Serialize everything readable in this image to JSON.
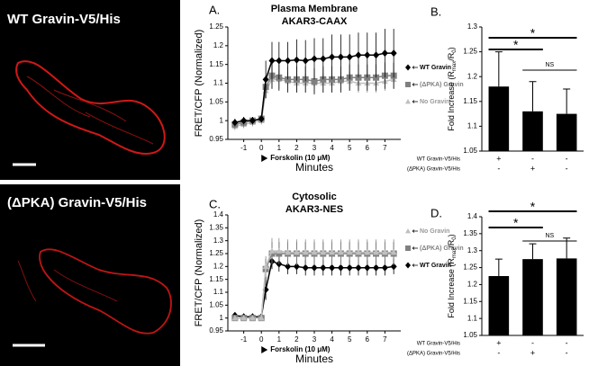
{
  "images": [
    {
      "label": "WT Gravin-V5/His"
    },
    {
      "label": "(ΔPKA) Gravin-V5/His"
    }
  ],
  "chart_data": [
    {
      "type": "line",
      "panel_label": "A.",
      "title": [
        "Plasma Membrane",
        "AKAR3-CAAX"
      ],
      "y_label": "FRET/CFP (Normalized)",
      "x_label": "Minutes",
      "x": [
        -1.5,
        -1,
        -0.5,
        0,
        0.25,
        0.6,
        1,
        1.5,
        2,
        2.5,
        3,
        3.5,
        4,
        4.5,
        5,
        5.5,
        6,
        6.5,
        7,
        7.5
      ],
      "xlim": [
        -1.9,
        7.9
      ],
      "xticks": [
        -1,
        0,
        1,
        2,
        3,
        4,
        5,
        6,
        7
      ],
      "ylim": [
        0.95,
        1.25
      ],
      "yticks": [
        0.95,
        1,
        1.05,
        1.1,
        1.15,
        1.2,
        1.25
      ],
      "annotation": {
        "text": "Forskolin (10 μM)",
        "x": 0
      },
      "series": [
        {
          "name": "WT Gravin",
          "color": "#000000",
          "marker": "diamond",
          "values": [
            0.995,
            1.0,
            1.0,
            1.005,
            1.11,
            1.16,
            1.16,
            1.16,
            1.162,
            1.16,
            1.165,
            1.165,
            1.17,
            1.17,
            1.17,
            1.175,
            1.175,
            1.175,
            1.18,
            1.18
          ],
          "errors": [
            0.01,
            0.01,
            0.01,
            0.01,
            0.05,
            0.05,
            0.05,
            0.05,
            0.055,
            0.055,
            0.055,
            0.055,
            0.06,
            0.06,
            0.06,
            0.06,
            0.06,
            0.06,
            0.065,
            0.065
          ]
        },
        {
          "name": "(ΔPKA) Gravin",
          "color": "#808080",
          "marker": "square",
          "values": [
            0.99,
            0.995,
            1.0,
            1.005,
            1.09,
            1.12,
            1.115,
            1.11,
            1.11,
            1.11,
            1.105,
            1.11,
            1.11,
            1.11,
            1.115,
            1.115,
            1.115,
            1.115,
            1.12,
            1.12
          ],
          "errors": [
            0.01,
            0.01,
            0.01,
            0.01,
            0.03,
            0.035,
            0.035,
            0.035,
            0.035,
            0.035,
            0.035,
            0.035,
            0.035,
            0.035,
            0.035,
            0.035,
            0.035,
            0.035,
            0.035,
            0.035
          ]
        },
        {
          "name": "No Gravin",
          "color": "#bfbfbf",
          "marker": "triangle",
          "values": [
            0.985,
            0.99,
            0.995,
            1.0,
            1.08,
            1.11,
            1.11,
            1.105,
            1.1,
            1.1,
            1.1,
            1.1,
            1.1,
            1.105,
            1.105,
            1.1,
            1.1,
            1.1,
            1.105,
            1.11
          ],
          "errors": [
            0.01,
            0.01,
            0.01,
            0.01,
            0.02,
            0.025,
            0.025,
            0.025,
            0.025,
            0.025,
            0.025,
            0.025,
            0.025,
            0.025,
            0.025,
            0.025,
            0.025,
            0.025,
            0.025,
            0.025
          ]
        }
      ]
    },
    {
      "type": "bar",
      "panel_label": "B.",
      "y_label": [
        "Fold Increase (R",
        "max",
        "/R",
        "0",
        ")"
      ],
      "color": "#000000",
      "values": [
        1.18,
        1.13,
        1.125
      ],
      "errors": [
        0.07,
        0.06,
        0.05
      ],
      "ylim": [
        1.05,
        1.3
      ],
      "yticks": [
        1.05,
        1.1,
        1.15,
        1.2,
        1.25,
        1.3
      ],
      "conditions": [
        {
          "name": "WT Gravin-V5/His",
          "marks": [
            "+",
            "-",
            "-"
          ]
        },
        {
          "name": "(ΔPKA) Gravin-V5/His",
          "marks": [
            "-",
            "+",
            "-"
          ]
        }
      ],
      "significance": [
        {
          "from": 0,
          "to": 2,
          "label": "*"
        },
        {
          "from": 0,
          "to": 1,
          "label": "*"
        },
        {
          "from": 1,
          "to": 2,
          "label": "NS"
        }
      ]
    },
    {
      "type": "line",
      "panel_label": "C.",
      "title": [
        "Cytosolic",
        "AKAR3-NES"
      ],
      "y_label": "FRET/CFP (Normalized)",
      "x_label": "Minutes",
      "x": [
        -1.5,
        -1,
        -0.5,
        0,
        0.25,
        0.6,
        1,
        1.5,
        2,
        2.5,
        3,
        3.5,
        4,
        4.5,
        5,
        5.5,
        6,
        6.5,
        7,
        7.5
      ],
      "xlim": [
        -1.9,
        7.9
      ],
      "xticks": [
        -1,
        0,
        1,
        2,
        3,
        4,
        5,
        6,
        7
      ],
      "ylim": [
        0.95,
        1.4
      ],
      "yticks": [
        0.95,
        1,
        1.05,
        1.1,
        1.15,
        1.2,
        1.25,
        1.3,
        1.35,
        1.4
      ],
      "annotation": {
        "text": "Forskolin (10 μM)",
        "x": 0
      },
      "series": [
        {
          "name": "No Gravin",
          "color": "#bfbfbf",
          "marker": "triangle",
          "values": [
            1.0,
            1.0,
            1.0,
            1.0,
            1.2,
            1.26,
            1.26,
            1.255,
            1.255,
            1.255,
            1.255,
            1.255,
            1.255,
            1.255,
            1.255,
            1.255,
            1.255,
            1.255,
            1.255,
            1.255
          ],
          "errors": [
            0.005,
            0.005,
            0.005,
            0.005,
            0.04,
            0.05,
            0.05,
            0.05,
            0.05,
            0.05,
            0.05,
            0.05,
            0.05,
            0.05,
            0.05,
            0.05,
            0.05,
            0.05,
            0.05,
            0.05
          ]
        },
        {
          "name": "(ΔPKA) Gravin",
          "color": "#808080",
          "marker": "square",
          "values": [
            1.0,
            1.0,
            1.0,
            1.0,
            1.19,
            1.25,
            1.25,
            1.25,
            1.25,
            1.25,
            1.25,
            1.25,
            1.25,
            1.25,
            1.25,
            1.25,
            1.25,
            1.25,
            1.25,
            1.25
          ],
          "errors": [
            0.005,
            0.005,
            0.005,
            0.005,
            0.04,
            0.045,
            0.045,
            0.045,
            0.045,
            0.045,
            0.045,
            0.045,
            0.045,
            0.045,
            0.045,
            0.045,
            0.045,
            0.045,
            0.045,
            0.045
          ]
        },
        {
          "name": "WT Gravin",
          "color": "#000000",
          "marker": "diamond",
          "values": [
            1.01,
            1.005,
            1.005,
            1.005,
            1.11,
            1.22,
            1.21,
            1.2,
            1.2,
            1.195,
            1.195,
            1.195,
            1.195,
            1.195,
            1.195,
            1.195,
            1.195,
            1.195,
            1.195,
            1.2
          ],
          "errors": [
            0.005,
            0.005,
            0.005,
            0.005,
            0.04,
            0.03,
            0.03,
            0.03,
            0.03,
            0.03,
            0.03,
            0.03,
            0.03,
            0.03,
            0.03,
            0.03,
            0.03,
            0.03,
            0.03,
            0.03
          ]
        }
      ]
    },
    {
      "type": "bar",
      "panel_label": "D.",
      "y_label": [
        "Fold Increase (R",
        "max",
        "/R",
        "0",
        ")"
      ],
      "color": "#000000",
      "values": [
        1.225,
        1.275,
        1.277
      ],
      "errors": [
        0.05,
        0.045,
        0.06
      ],
      "ylim": [
        1.05,
        1.4
      ],
      "yticks": [
        1.05,
        1.1,
        1.15,
        1.2,
        1.25,
        1.3,
        1.35,
        1.4
      ],
      "conditions": [
        {
          "name": "WT Gravin-V5/His",
          "marks": [
            "+",
            "-",
            "-"
          ]
        },
        {
          "name": "(ΔPKA) Gravin-V5/His",
          "marks": [
            "-",
            "+",
            "-"
          ]
        }
      ],
      "significance": [
        {
          "from": 0,
          "to": 2,
          "label": "*"
        },
        {
          "from": 0,
          "to": 1,
          "label": "*"
        },
        {
          "from": 1,
          "to": 2,
          "label": "NS"
        }
      ]
    }
  ]
}
